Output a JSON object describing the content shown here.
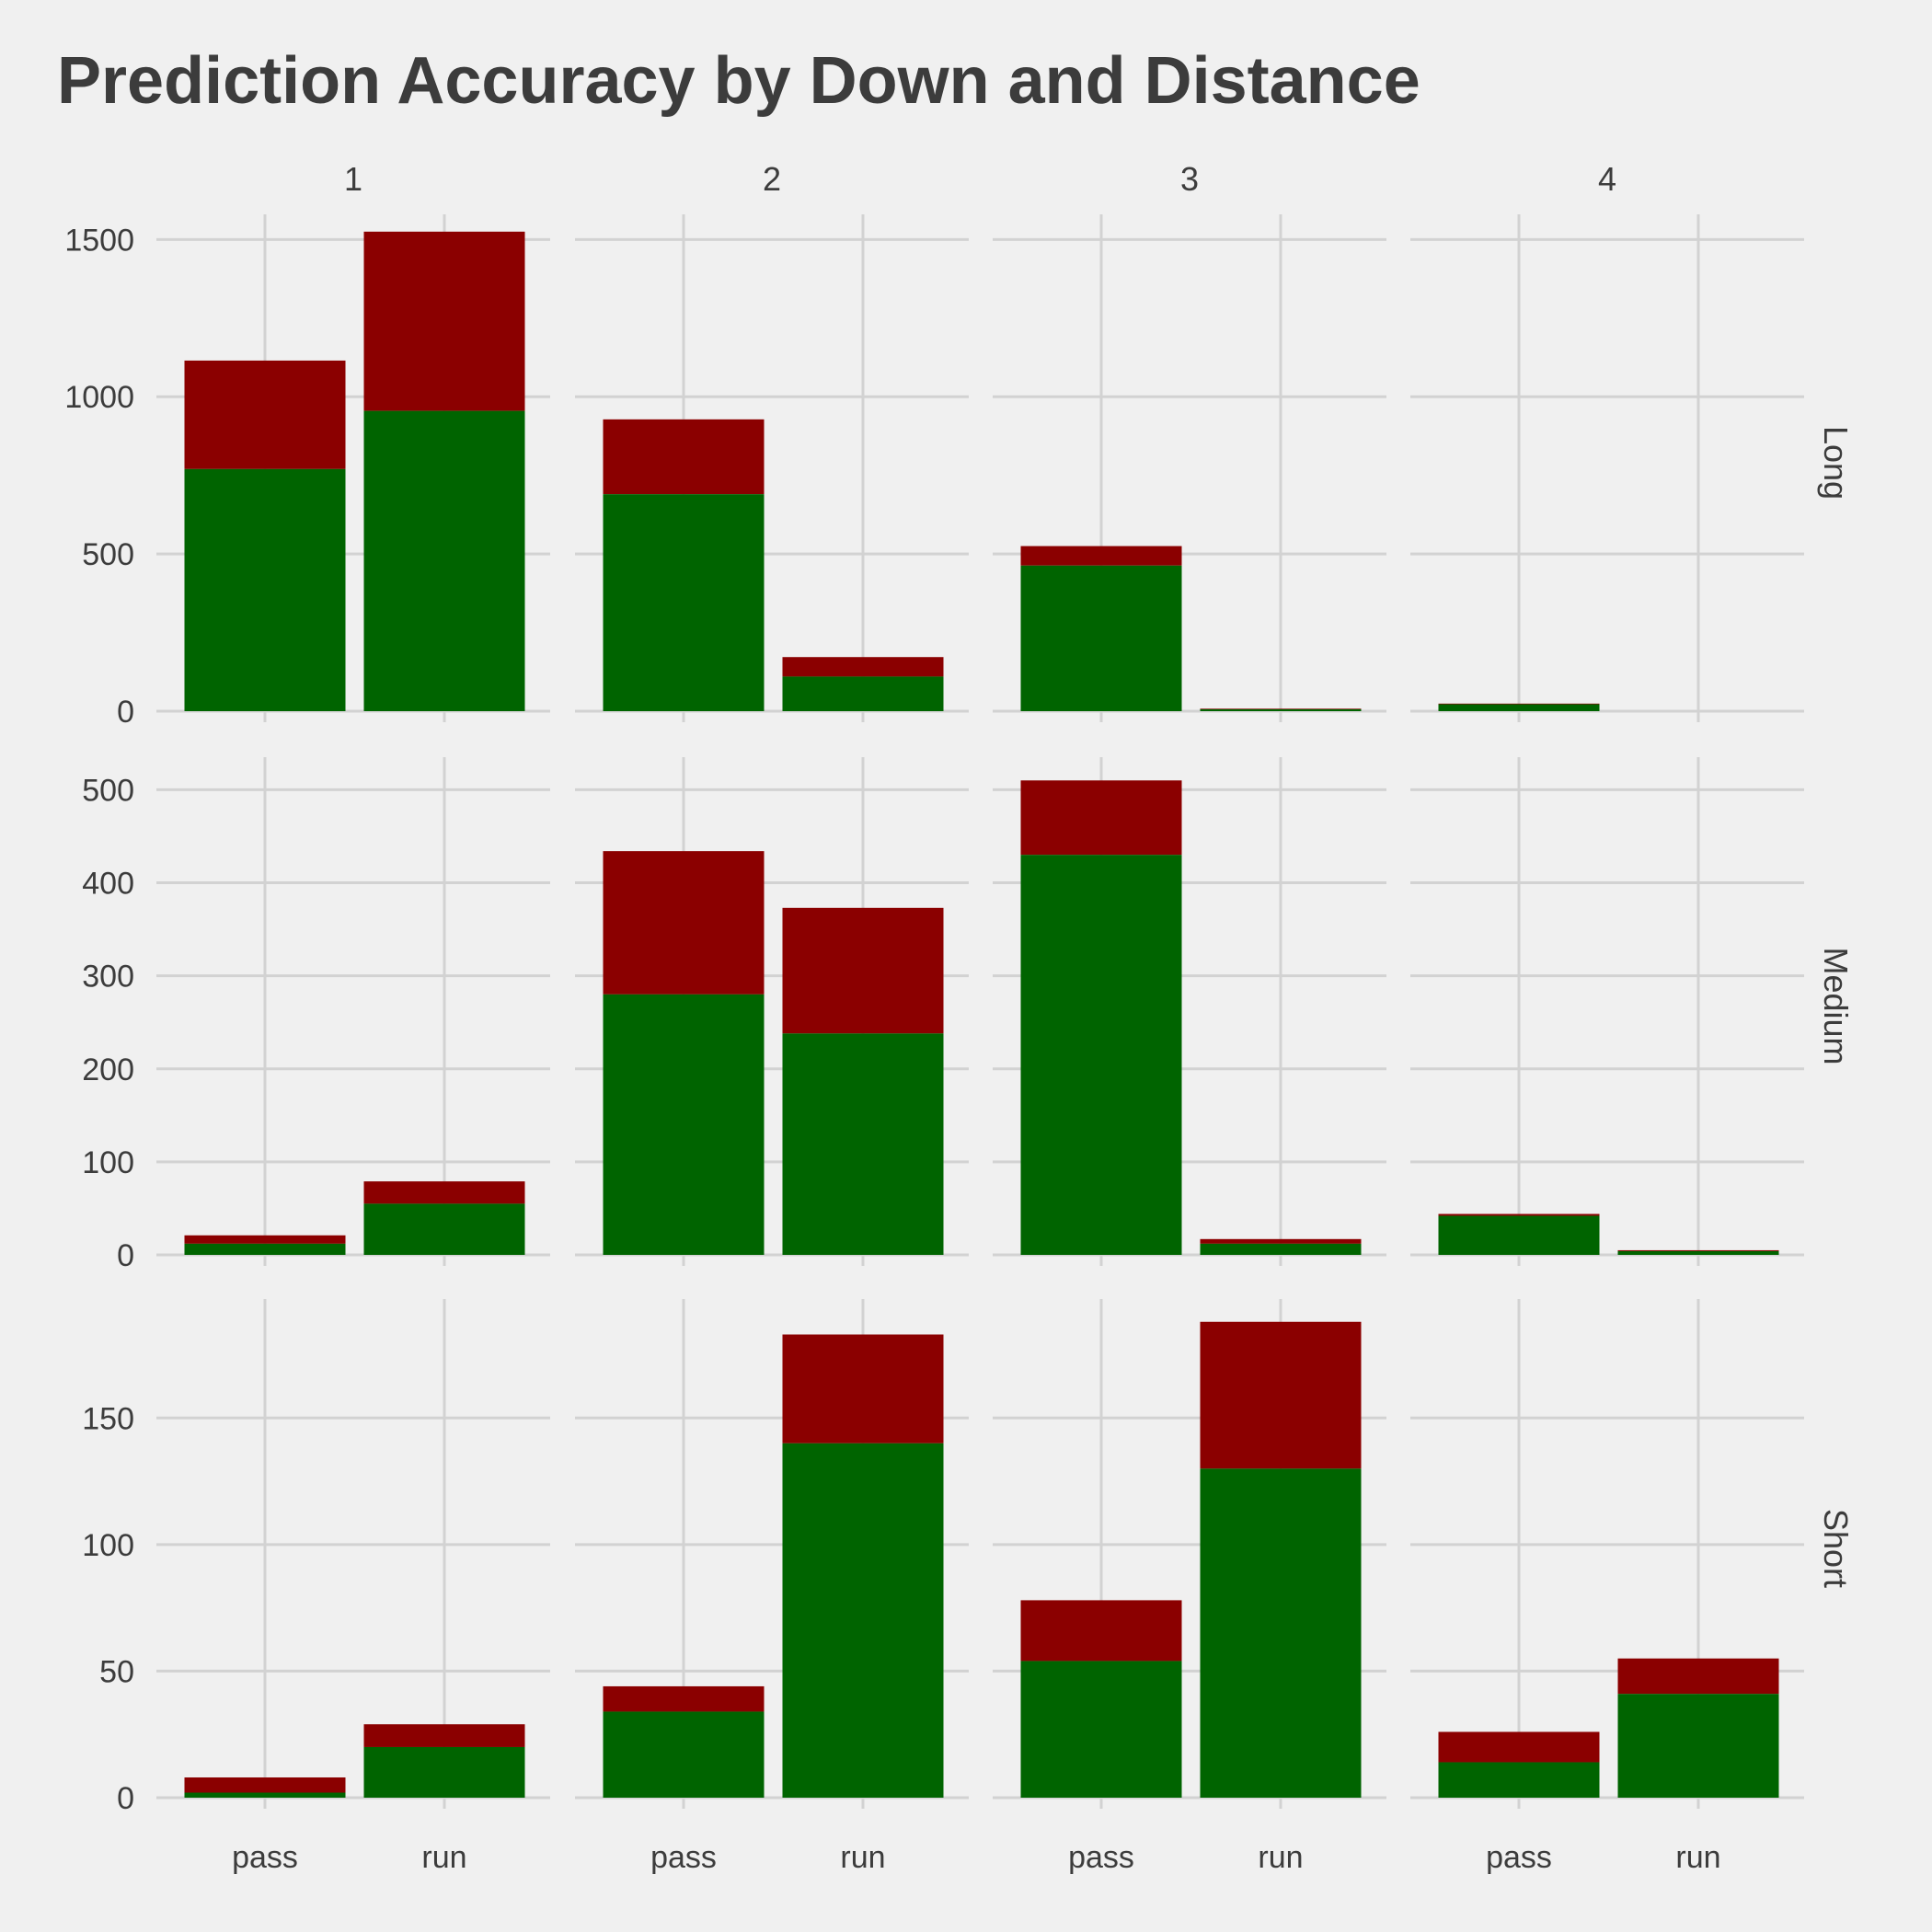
{
  "chart_data": {
    "type": "bar",
    "stacked": true,
    "title": "Prediction Accuracy by Down and Distance",
    "columns": [
      "1",
      "2",
      "3",
      "4"
    ],
    "rows": [
      "Long",
      "Medium",
      "Short"
    ],
    "categories": [
      "pass",
      "run"
    ],
    "colors": {
      "correct": "#006400",
      "incorrect": "#8b0000",
      "background": "#f0f0f0",
      "grid": "#d2d2d2",
      "text": "#3c3c3c"
    },
    "legend": "none",
    "grid": true,
    "panels": [
      {
        "row": "Long",
        "col": "1",
        "ylim": [
          0,
          1580
        ],
        "yticks": [
          0,
          500,
          1000,
          1500
        ],
        "correct": [
          770,
          955
        ],
        "total": [
          1115,
          1525
        ]
      },
      {
        "row": "Long",
        "col": "2",
        "ylim": [
          0,
          1580
        ],
        "yticks": [
          0,
          500,
          1000,
          1500
        ],
        "correct": [
          690,
          110
        ],
        "total": [
          928,
          172
        ]
      },
      {
        "row": "Long",
        "col": "3",
        "ylim": [
          0,
          1580
        ],
        "yticks": [
          0,
          500,
          1000,
          1500
        ],
        "correct": [
          463,
          6
        ],
        "total": [
          525,
          8
        ]
      },
      {
        "row": "Long",
        "col": "4",
        "ylim": [
          0,
          1580
        ],
        "yticks": [
          0,
          500,
          1000,
          1500
        ],
        "correct": [
          22,
          0
        ],
        "total": [
          24,
          0
        ]
      },
      {
        "row": "Medium",
        "col": "1",
        "ylim": [
          0,
          535
        ],
        "yticks": [
          0,
          100,
          200,
          300,
          400,
          500
        ],
        "correct": [
          12,
          55
        ],
        "total": [
          21,
          79
        ]
      },
      {
        "row": "Medium",
        "col": "2",
        "ylim": [
          0,
          535
        ],
        "yticks": [
          0,
          100,
          200,
          300,
          400,
          500
        ],
        "correct": [
          280,
          238
        ],
        "total": [
          434,
          373
        ]
      },
      {
        "row": "Medium",
        "col": "3",
        "ylim": [
          0,
          535
        ],
        "yticks": [
          0,
          100,
          200,
          300,
          400,
          500
        ],
        "correct": [
          430,
          12
        ],
        "total": [
          510,
          17
        ]
      },
      {
        "row": "Medium",
        "col": "4",
        "ylim": [
          0,
          535
        ],
        "yticks": [
          0,
          100,
          200,
          300,
          400,
          500
        ],
        "correct": [
          42,
          4
        ],
        "total": [
          44,
          5
        ]
      },
      {
        "row": "Short",
        "col": "1",
        "ylim": [
          0,
          197
        ],
        "yticks": [
          0,
          50,
          100,
          150
        ],
        "correct": [
          2,
          20
        ],
        "total": [
          8,
          29
        ]
      },
      {
        "row": "Short",
        "col": "2",
        "ylim": [
          0,
          197
        ],
        "yticks": [
          0,
          50,
          100,
          150
        ],
        "correct": [
          34,
          140
        ],
        "total": [
          44,
          183
        ]
      },
      {
        "row": "Short",
        "col": "3",
        "ylim": [
          0,
          197
        ],
        "yticks": [
          0,
          50,
          100,
          150
        ],
        "correct": [
          54,
          130
        ],
        "total": [
          78,
          188
        ]
      },
      {
        "row": "Short",
        "col": "4",
        "ylim": [
          0,
          197
        ],
        "yticks": [
          0,
          50,
          100,
          150
        ],
        "correct": [
          14,
          41
        ],
        "total": [
          26,
          55
        ]
      }
    ]
  }
}
